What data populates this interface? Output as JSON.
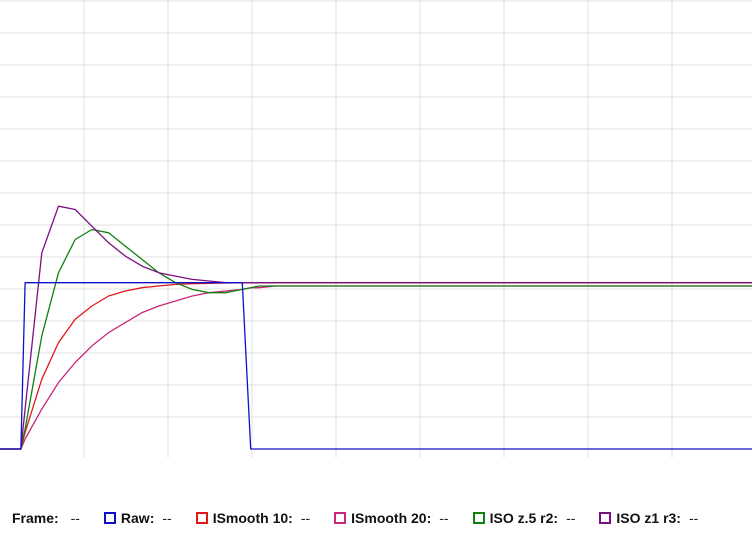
{
  "legend": {
    "frame_label": "Frame:",
    "frame_value": "--",
    "items": [
      {
        "key": "raw",
        "label": "Raw:",
        "value": "--",
        "color": "#1010c8"
      },
      {
        "key": "ismooth10",
        "label": "ISmooth 10:",
        "value": "--",
        "color": "#e01818"
      },
      {
        "key": "ismooth20",
        "label": "ISmooth 20:",
        "value": "--",
        "color": "#c8287a"
      },
      {
        "key": "iso_z5_r2",
        "label": "ISO z.5 r2:",
        "value": "--",
        "color": "#108010"
      },
      {
        "key": "iso_z1_r3",
        "label": "ISO z1 r3:",
        "value": "--",
        "color": "#7a1080"
      }
    ]
  },
  "chart_data": {
    "type": "line",
    "title": "",
    "xlabel": "",
    "ylabel": "",
    "grid": true,
    "legend_position": "bottom",
    "xlim": [
      0,
      180
    ],
    "ylim": [
      0,
      1.35
    ],
    "x": [
      0,
      5,
      6,
      10,
      14,
      18,
      22,
      26,
      30,
      34,
      38,
      42,
      46,
      50,
      54,
      58,
      60,
      62,
      66,
      70,
      74,
      78,
      82,
      86,
      90,
      94,
      98,
      102,
      106,
      110,
      114,
      118,
      122,
      126,
      130,
      134,
      138,
      142,
      146,
      150,
      154,
      158,
      162,
      166,
      170,
      174,
      178,
      180
    ],
    "series": [
      {
        "key": "raw",
        "name": "Raw",
        "color": "#1010c8",
        "values": [
          0,
          0,
          0.5,
          0.5,
          0.5,
          0.5,
          0.5,
          0.5,
          0.5,
          0.5,
          0.5,
          0.5,
          0.5,
          0.5,
          0.5,
          0.5,
          0,
          0,
          0,
          0,
          0,
          0,
          0,
          0,
          0,
          0,
          0,
          0,
          0,
          0,
          0,
          0,
          0,
          0,
          0,
          0,
          0,
          0,
          0,
          0,
          0,
          0,
          0,
          0,
          0,
          0,
          0,
          0
        ]
      },
      {
        "key": "ismooth10",
        "name": "ISmooth 10",
        "color": "#e01818",
        "values": [
          0,
          0,
          0.05,
          0.21,
          0.32,
          0.39,
          0.43,
          0.46,
          0.475,
          0.485,
          0.49,
          0.495,
          0.497,
          0.498,
          0.499,
          0.5,
          0.5,
          0.5,
          0.5,
          0.5,
          0.5,
          0.5,
          0.5,
          0.5,
          0.5,
          0.5,
          0.5,
          0.5,
          0.5,
          0.5,
          0.5,
          0.5,
          0.5,
          0.5,
          0.5,
          0.5,
          0.5,
          0.5,
          0.5,
          0.5,
          0.5,
          0.5,
          0.5,
          0.5,
          0.5,
          0.5,
          0.5,
          0.5
        ]
      },
      {
        "key": "ismooth20",
        "name": "ISmooth 20",
        "color": "#c8287a",
        "values": [
          0,
          0,
          0.03,
          0.12,
          0.2,
          0.26,
          0.31,
          0.35,
          0.38,
          0.41,
          0.43,
          0.445,
          0.46,
          0.47,
          0.475,
          0.48,
          0.485,
          0.485,
          0.49,
          0.49,
          0.49,
          0.49,
          0.49,
          0.49,
          0.49,
          0.49,
          0.49,
          0.49,
          0.49,
          0.49,
          0.49,
          0.49,
          0.49,
          0.49,
          0.49,
          0.49,
          0.49,
          0.49,
          0.49,
          0.49,
          0.49,
          0.49,
          0.49,
          0.49,
          0.49,
          0.49,
          0.49,
          0.49
        ]
      },
      {
        "key": "iso_z5_r2",
        "name": "ISO z.5 r2",
        "color": "#108010",
        "values": [
          0,
          0,
          0.06,
          0.34,
          0.53,
          0.63,
          0.66,
          0.65,
          0.61,
          0.57,
          0.53,
          0.5,
          0.48,
          0.47,
          0.47,
          0.48,
          0.485,
          0.49,
          0.49,
          0.49,
          0.49,
          0.49,
          0.49,
          0.49,
          0.49,
          0.49,
          0.49,
          0.49,
          0.49,
          0.49,
          0.49,
          0.49,
          0.49,
          0.49,
          0.49,
          0.49,
          0.49,
          0.49,
          0.49,
          0.49,
          0.49,
          0.49,
          0.49,
          0.49,
          0.49,
          0.49,
          0.49,
          0.49
        ]
      },
      {
        "key": "iso_z1_r3",
        "name": "ISO z1 r3",
        "color": "#7a1080",
        "values": [
          0,
          0,
          0.12,
          0.59,
          0.73,
          0.72,
          0.67,
          0.62,
          0.58,
          0.55,
          0.53,
          0.52,
          0.51,
          0.505,
          0.5,
          0.5,
          0.5,
          0.5,
          0.5,
          0.5,
          0.5,
          0.5,
          0.5,
          0.5,
          0.5,
          0.5,
          0.5,
          0.5,
          0.5,
          0.5,
          0.5,
          0.5,
          0.5,
          0.5,
          0.5,
          0.5,
          0.5,
          0.5,
          0.5,
          0.5,
          0.5,
          0.5,
          0.5,
          0.5,
          0.5,
          0.5,
          0.5,
          0.5
        ]
      }
    ]
  }
}
